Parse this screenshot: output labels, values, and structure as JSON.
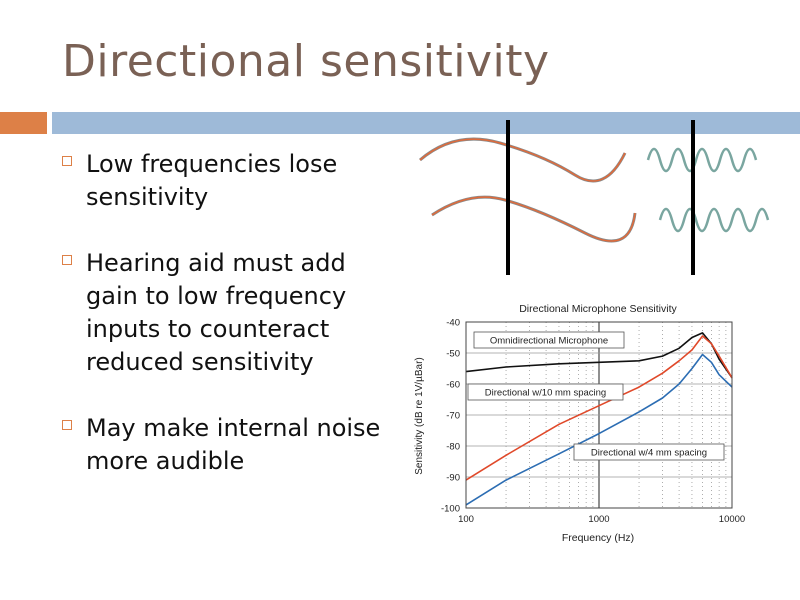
{
  "slide": {
    "title": "Directional sensitivity",
    "bullets": [
      "Low frequencies lose sensitivity",
      "Hearing aid must add gain to low frequency inputs to counteract reduced sensitivity",
      "May make internal noise more audible"
    ]
  },
  "colors": {
    "title": "#7a6155",
    "accent_orange": "#dd8047",
    "accent_blue": "#9ebad8",
    "omni": "#111111",
    "dir10": "#e0492a",
    "dir4": "#2c6db3"
  },
  "chart_data": {
    "type": "line",
    "title": "Directional Microphone Sensitivity",
    "xlabel": "Frequency (Hz)",
    "ylabel": "Sensitivity (dB re 1V/µBar)",
    "x_scale": "log",
    "xlim": [
      100,
      10000
    ],
    "ylim": [
      -100,
      -40
    ],
    "x_ticks": [
      "100",
      "1000",
      "10000"
    ],
    "y_ticks": [
      "-40",
      "-50",
      "-60",
      "-70",
      "-80",
      "-90",
      "-100"
    ],
    "grid": true,
    "series": [
      {
        "name": "Omnidirectional Microphone",
        "color": "#111111",
        "x": [
          100,
          200,
          500,
          1000,
          2000,
          3000,
          4000,
          5000,
          6000,
          7000,
          8000,
          10000
        ],
        "y": [
          -56,
          -54.5,
          -53.5,
          -53,
          -52.5,
          -51,
          -48.5,
          -45,
          -43.5,
          -47,
          -52,
          -58
        ]
      },
      {
        "name": "Directional w/10 mm spacing",
        "color": "#e0492a",
        "x": [
          100,
          200,
          500,
          1000,
          2000,
          3000,
          4000,
          5000,
          6000,
          7000,
          8000,
          10000
        ],
        "y": [
          -91,
          -83,
          -73,
          -67,
          -61,
          -56.5,
          -52.5,
          -49,
          -44.5,
          -47,
          -51,
          -58
        ]
      },
      {
        "name": "Directional w/4 mm spacing",
        "color": "#2c6db3",
        "x": [
          100,
          200,
          500,
          1000,
          2000,
          3000,
          4000,
          5000,
          6000,
          7000,
          8000,
          10000
        ],
        "y": [
          -99,
          -91,
          -82.5,
          -76,
          -69,
          -64.5,
          -60,
          -55,
          -50.5,
          -53,
          -57,
          -61
        ]
      }
    ]
  }
}
